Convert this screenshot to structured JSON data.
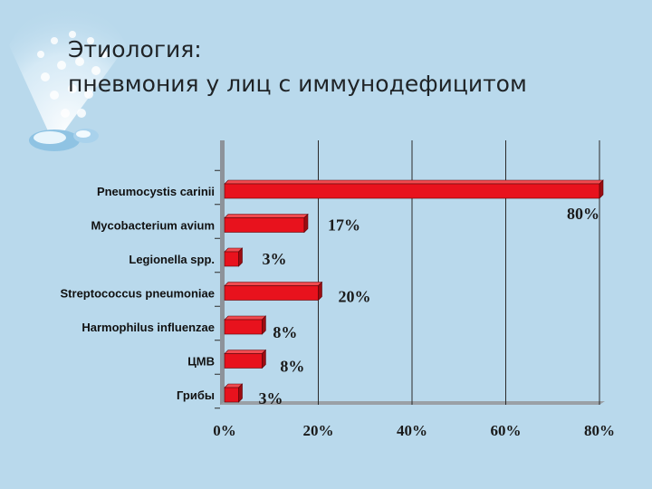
{
  "page": {
    "title_line1": "Этиология:",
    "title_line2": "пневмония у лиц с иммунодефицитом"
  },
  "chart_data": {
    "type": "bar",
    "orientation": "horizontal",
    "title": "",
    "xlabel": "",
    "ylabel": "",
    "categories": [
      "Pneumocystis carinii",
      "Mycobacterium avium",
      "Legionella spp.",
      "Streptococcus pneumoniae",
      "Harmophilus influenzae",
      "ЦМВ",
      "Грибы"
    ],
    "values": [
      80,
      17,
      3,
      20,
      8,
      8,
      3
    ],
    "data_labels": [
      "80%",
      "17%",
      "3%",
      "20%",
      "8%",
      "8%",
      "3%"
    ],
    "xlim": [
      0,
      80
    ],
    "x_ticks": [
      "0%",
      "20%",
      "40%",
      "60%",
      "80%"
    ],
    "grid": "vertical",
    "bar_color": "#e8121d",
    "bar_top_color": "#f04a4f",
    "bar_side_color": "#9c0c12"
  }
}
